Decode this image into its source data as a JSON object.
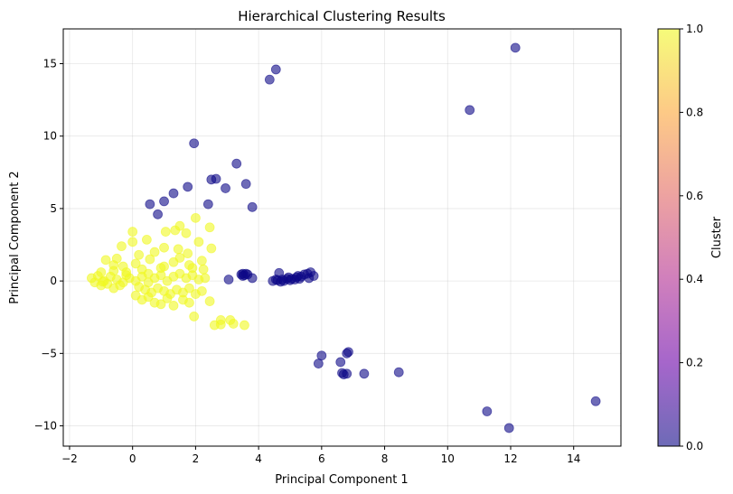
{
  "chart_data": {
    "type": "scatter",
    "title": "Hierarchical Clustering Results",
    "xlabel": "Principal Component 1",
    "ylabel": "Principal Component 2",
    "xlim": [
      -2.2,
      15.5
    ],
    "ylim": [
      -11.4,
      17.4
    ],
    "xticks": [
      -2,
      0,
      2,
      4,
      6,
      8,
      10,
      12,
      14
    ],
    "xtick_labels": [
      "−2",
      "0",
      "2",
      "4",
      "6",
      "8",
      "10",
      "12",
      "14"
    ],
    "yticks": [
      -10,
      -5,
      0,
      5,
      10,
      15
    ],
    "ytick_labels": [
      "−10",
      "−5",
      "0",
      "5",
      "10",
      "15"
    ],
    "grid": true,
    "colorbar": {
      "label": "Cluster",
      "range": [
        0.0,
        1.0
      ],
      "ticks": [
        0.0,
        0.2,
        0.4,
        0.6,
        0.8,
        1.0
      ],
      "tick_labels": [
        "0.0",
        "0.2",
        "0.4",
        "0.6",
        "0.8",
        "1.0"
      ],
      "colormap": "plasma",
      "colors": [
        "#0d0887",
        "#6a00a8",
        "#b12a90",
        "#e16462",
        "#fca636",
        "#f0f921"
      ]
    },
    "marker_opacity": 0.6,
    "series": [
      {
        "cluster_value": 0,
        "color": "#0d0887",
        "points": [
          [
            12.15,
            16.1
          ],
          [
            4.55,
            14.6
          ],
          [
            4.35,
            13.9
          ],
          [
            10.7,
            11.8
          ],
          [
            1.95,
            9.5
          ],
          [
            3.3,
            8.1
          ],
          [
            3.6,
            6.7
          ],
          [
            2.5,
            7.0
          ],
          [
            2.65,
            7.05
          ],
          [
            2.95,
            6.4
          ],
          [
            1.75,
            6.5
          ],
          [
            1.3,
            6.05
          ],
          [
            1.0,
            5.5
          ],
          [
            0.55,
            5.3
          ],
          [
            2.4,
            5.3
          ],
          [
            3.8,
            5.1
          ],
          [
            0.8,
            4.6
          ],
          [
            3.45,
            0.45
          ],
          [
            3.5,
            0.5
          ],
          [
            3.55,
            0.4
          ],
          [
            3.6,
            0.5
          ],
          [
            3.65,
            0.45
          ],
          [
            3.5,
            0.35
          ],
          [
            3.8,
            0.2
          ],
          [
            3.05,
            0.1
          ],
          [
            4.45,
            0.0
          ],
          [
            4.6,
            0.05
          ],
          [
            4.75,
            0.1
          ],
          [
            4.9,
            0.15
          ],
          [
            5.05,
            0.15
          ],
          [
            5.2,
            0.25
          ],
          [
            5.35,
            0.3
          ],
          [
            5.45,
            0.45
          ],
          [
            5.55,
            0.5
          ],
          [
            5.65,
            0.6
          ],
          [
            5.75,
            0.35
          ],
          [
            4.65,
            0.55
          ],
          [
            4.8,
            0.0
          ],
          [
            5.0,
            0.05
          ],
          [
            5.15,
            0.1
          ],
          [
            5.3,
            0.15
          ],
          [
            4.55,
            0.1
          ],
          [
            5.6,
            0.2
          ],
          [
            4.7,
            -0.05
          ],
          [
            5.25,
            0.35
          ],
          [
            4.95,
            0.25
          ],
          [
            6.85,
            -4.9
          ],
          [
            6.8,
            -5.0
          ],
          [
            6.0,
            -5.15
          ],
          [
            5.9,
            -5.7
          ],
          [
            6.6,
            -5.6
          ],
          [
            6.65,
            -6.35
          ],
          [
            6.8,
            -6.4
          ],
          [
            6.7,
            -6.45
          ],
          [
            7.35,
            -6.4
          ],
          [
            8.45,
            -6.3
          ],
          [
            14.7,
            -8.3
          ],
          [
            11.25,
            -9.0
          ],
          [
            11.95,
            -10.15
          ]
        ]
      },
      {
        "cluster_value": 1,
        "color": "#f0f921",
        "points": [
          [
            2.0,
            4.35
          ],
          [
            1.5,
            3.8
          ],
          [
            1.7,
            3.3
          ],
          [
            2.45,
            3.7
          ],
          [
            1.05,
            3.4
          ],
          [
            0.0,
            3.4
          ],
          [
            1.35,
            3.5
          ],
          [
            2.1,
            2.7
          ],
          [
            0.45,
            2.85
          ],
          [
            0.0,
            2.7
          ],
          [
            0.7,
            2.0
          ],
          [
            1.0,
            2.3
          ],
          [
            1.45,
            2.2
          ],
          [
            1.75,
            1.9
          ],
          [
            2.5,
            2.25
          ],
          [
            -0.35,
            2.4
          ],
          [
            -0.5,
            1.55
          ],
          [
            0.2,
            1.8
          ],
          [
            0.55,
            1.5
          ],
          [
            1.3,
            1.3
          ],
          [
            2.2,
            1.4
          ],
          [
            1.9,
            0.9
          ],
          [
            0.9,
            0.9
          ],
          [
            0.3,
            0.8
          ],
          [
            -0.85,
            1.45
          ],
          [
            -0.3,
            1.0
          ],
          [
            -0.6,
            0.7
          ],
          [
            -1.0,
            0.6
          ],
          [
            -1.3,
            0.2
          ],
          [
            -1.2,
            -0.1
          ],
          [
            -0.9,
            0.0
          ],
          [
            -0.7,
            0.3
          ],
          [
            -0.5,
            0.1
          ],
          [
            -0.3,
            -0.1
          ],
          [
            -0.1,
            0.2
          ],
          [
            0.1,
            0.0
          ],
          [
            -0.4,
            -0.3
          ],
          [
            -0.8,
            -0.2
          ],
          [
            -0.2,
            0.4
          ],
          [
            0.3,
            0.3
          ],
          [
            0.5,
            -0.1
          ],
          [
            0.7,
            0.2
          ],
          [
            0.9,
            0.4
          ],
          [
            1.1,
            0.0
          ],
          [
            1.3,
            0.3
          ],
          [
            1.5,
            0.5
          ],
          [
            1.7,
            0.2
          ],
          [
            1.9,
            0.4
          ],
          [
            2.1,
            0.1
          ],
          [
            2.3,
            0.2
          ],
          [
            0.2,
            -0.4
          ],
          [
            0.4,
            -0.6
          ],
          [
            0.6,
            -0.8
          ],
          [
            0.8,
            -0.5
          ],
          [
            1.0,
            -0.7
          ],
          [
            1.2,
            -0.9
          ],
          [
            1.4,
            -0.6
          ],
          [
            1.6,
            -0.8
          ],
          [
            1.8,
            -0.5
          ],
          [
            2.0,
            -0.9
          ],
          [
            2.2,
            -0.7
          ],
          [
            1.1,
            -1.2
          ],
          [
            0.5,
            -1.1
          ],
          [
            0.1,
            -1.0
          ],
          [
            -0.6,
            -0.5
          ],
          [
            -1.0,
            -0.3
          ],
          [
            0.7,
            -1.5
          ],
          [
            0.9,
            -1.6
          ],
          [
            1.3,
            -1.7
          ],
          [
            1.6,
            -1.3
          ],
          [
            0.3,
            -1.3
          ],
          [
            2.45,
            -1.4
          ],
          [
            1.8,
            -1.5
          ],
          [
            1.95,
            -2.45
          ],
          [
            2.8,
            -2.7
          ],
          [
            3.1,
            -2.7
          ],
          [
            2.6,
            -3.05
          ],
          [
            2.8,
            -3.0
          ],
          [
            3.2,
            -2.95
          ],
          [
            3.55,
            -3.05
          ],
          [
            -0.6,
            1.1
          ],
          [
            0.1,
            1.2
          ],
          [
            1.5,
            1.6
          ],
          [
            1.0,
            1.0
          ],
          [
            -0.2,
            0.6
          ],
          [
            0.5,
            0.5
          ],
          [
            1.8,
            1.1
          ],
          [
            2.25,
            0.8
          ],
          [
            -1.1,
            0.35
          ],
          [
            -0.95,
            -0.05
          ]
        ]
      }
    ]
  }
}
